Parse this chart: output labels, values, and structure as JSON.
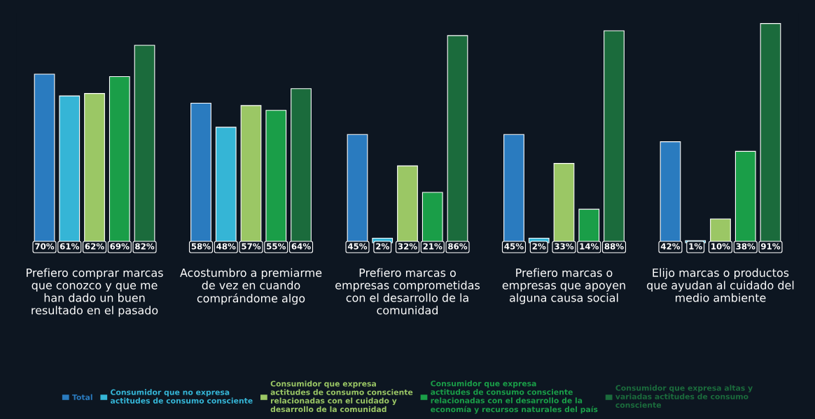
{
  "chart_data": {
    "type": "bar",
    "categories": [
      "Prefiero comprar marcas\nque conozco y que me\nhan dado un buen\nresultado en el pasado",
      "Acostumbro a premiarme\nde vez en cuando\ncomprándome algo",
      "Prefiero marcas o\nempresas comprometidas\ncon el desarrollo de la\ncomunidad",
      "Prefiero marcas o\nempresas que apoyen\nalguna causa social",
      "Elijo marcas o productos\nque ayudan al cuidado del\nmedio ambiente"
    ],
    "series": [
      {
        "name": "Total",
        "color": "#2a7bbf",
        "values": [
          70,
          58,
          45,
          45,
          42
        ],
        "value_labels": [
          "70%",
          "58%",
          "45%",
          "45%",
          "42%"
        ]
      },
      {
        "name": "Consumidor que no expresa\nactitudes de consumo consciente",
        "color": "#35b5d6",
        "values": [
          61,
          48,
          2,
          2,
          1
        ],
        "value_labels": [
          "61%",
          "48%",
          "2%",
          "2%",
          "1%"
        ]
      },
      {
        "name": "Consumidor que expresa\nactitudes de consumo consciente\nrelacionadas con el cuidado y\ndesarrollo de la comunidad",
        "color": "#9bc765",
        "values": [
          62,
          57,
          32,
          33,
          10
        ],
        "value_labels": [
          "62%",
          "57%",
          "32%",
          "33%",
          "10%"
        ]
      },
      {
        "name": "Consumidor que expresa\nactitudes de consumo consciente\nrelacionadas con el desarrollo de la\neconomía y recursos naturales del país",
        "color": "#1a9e48",
        "values": [
          69,
          55,
          21,
          14,
          38
        ],
        "value_labels": [
          "69%",
          "55%",
          "21%",
          "14%",
          "38%"
        ]
      },
      {
        "name": "Consumidor que expresa altas y\nvariadas actitudes de consumo\nconsciente",
        "color": "#1b6b3c",
        "values": [
          82,
          64,
          86,
          88,
          91
        ],
        "value_labels": [
          "82%",
          "64%",
          "86%",
          "88%",
          "91%"
        ]
      }
    ],
    "tick_labels": "x",
    "grid": false,
    "legend": "bottom"
  }
}
